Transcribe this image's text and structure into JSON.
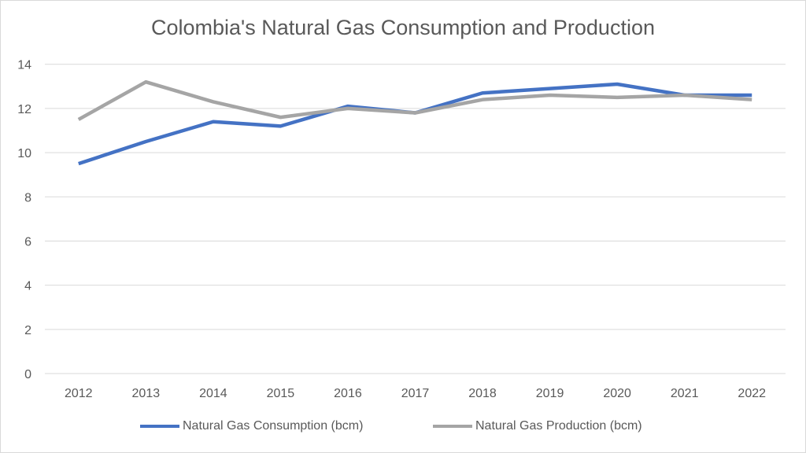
{
  "chart_data": {
    "type": "line",
    "title": "Colombia's Natural Gas Consumption and Production",
    "xlabel": "",
    "ylabel": "",
    "x": [
      "2012",
      "2013",
      "2014",
      "2015",
      "2016",
      "2017",
      "2018",
      "2019",
      "2020",
      "2021",
      "2022"
    ],
    "ylim": [
      0,
      14
    ],
    "yticks": [
      "0",
      "2",
      "4",
      "6",
      "8",
      "10",
      "12",
      "14"
    ],
    "grid": true,
    "legend_position": "bottom",
    "series": [
      {
        "name": "Natural Gas Consumption (bcm)",
        "color": "#4472c4",
        "values": [
          9.5,
          10.5,
          11.4,
          11.2,
          12.1,
          11.8,
          12.7,
          12.9,
          13.1,
          12.6,
          12.6
        ]
      },
      {
        "name": "Natural Gas Production (bcm)",
        "color": "#a5a5a5",
        "values": [
          11.5,
          13.2,
          12.3,
          11.6,
          12.0,
          11.8,
          12.4,
          12.6,
          12.5,
          12.6,
          12.4
        ]
      }
    ]
  }
}
